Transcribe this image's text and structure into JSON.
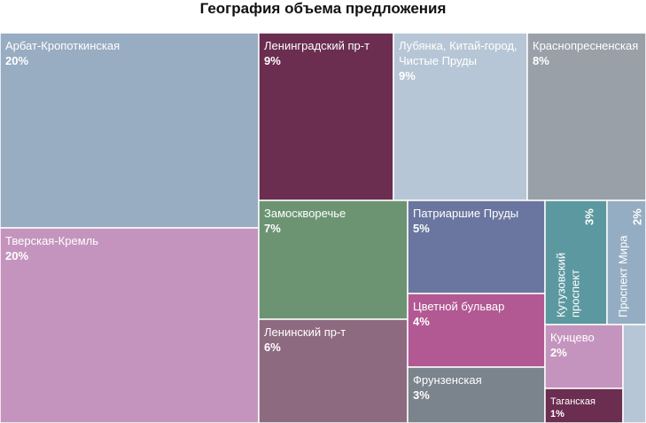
{
  "chart_data": {
    "type": "treemap",
    "title": "География объема предложения",
    "tiles": [
      {
        "name": "Арбат-Кропоткинская",
        "value": "20%",
        "color": "#98acc2"
      },
      {
        "name": "Тверская-Кремль",
        "value": "20%",
        "color": "#c494be"
      },
      {
        "name": "Ленинградский пр-т",
        "value": "9%",
        "color": "#6b2d50"
      },
      {
        "name": "Лубянка, Китай-город, Чистые Пруды",
        "value": "9%",
        "color": "#b7c6d6"
      },
      {
        "name": "Краснопресненская",
        "value": "8%",
        "color": "#99a0a8"
      },
      {
        "name": "Замоскворечье",
        "value": "7%",
        "color": "#6c9472"
      },
      {
        "name": "Ленинский пр-т",
        "value": "6%",
        "color": "#8e6a80"
      },
      {
        "name": "Патриаршие Пруды",
        "value": "5%",
        "color": "#6a769f"
      },
      {
        "name": "Цветной бульвар",
        "value": "4%",
        "color": "#b25993"
      },
      {
        "name": "Фрунзенская",
        "value": "3%",
        "color": "#7b838c"
      },
      {
        "name": "Кутузовский проспект",
        "value": "3%",
        "color": "#5c98a0"
      },
      {
        "name": "Проспект Мира",
        "value": "2%",
        "color": "#95adc2"
      },
      {
        "name": "Кунцево",
        "value": "2%",
        "color": "#c494be"
      },
      {
        "name": "Таганская",
        "value": "1%",
        "color": "#6b2d50"
      },
      {
        "name": "",
        "value": "",
        "color": "#b7c6d6"
      }
    ]
  }
}
